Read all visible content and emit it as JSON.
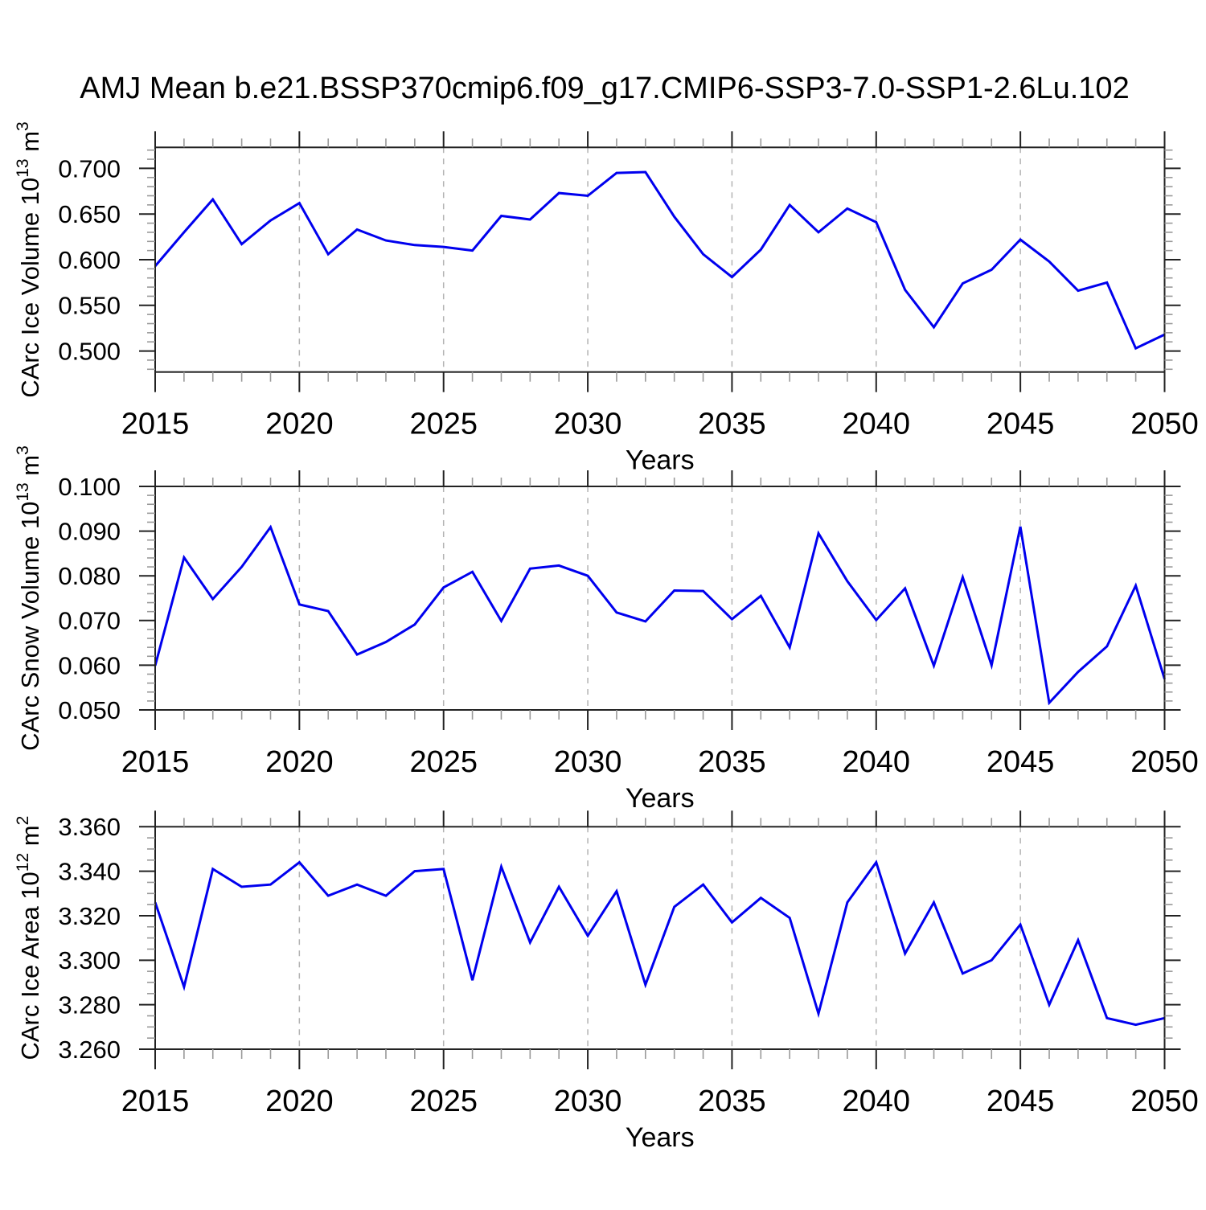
{
  "title": "AMJ Mean b.e21.BSSP370cmip6.f09_g17.CMIP6-SSP3-7.0-SSP1-2.6Lu.102",
  "x_axis": {
    "label": "Years",
    "tick_labels": [
      "2015",
      "2020",
      "2025",
      "2030",
      "2035",
      "2040",
      "2045",
      "2050"
    ],
    "major_step": 5,
    "minor_step": 1,
    "grid_years": [
      2020,
      2025,
      2030,
      2035,
      2040,
      2045
    ]
  },
  "style": {
    "line_color": "#0000ee",
    "grid_color": "#b3b3b3",
    "axis_color": "#222222",
    "minor_tick_color": "#999999",
    "text_color": "#000000",
    "background": "#ffffff"
  },
  "chart_data": [
    {
      "type": "line",
      "name": "carc-ice-volume",
      "ylabel": "CArc Ice Volume 10^13 m^3",
      "ylabel_parts": [
        {
          "t": "CArc Ice Volume 10"
        },
        {
          "t": "13",
          "sup": true
        },
        {
          "t": " m"
        },
        {
          "t": "3",
          "sup": true
        }
      ],
      "xlabel": "Years",
      "x": [
        2015,
        2016,
        2017,
        2018,
        2019,
        2020,
        2021,
        2022,
        2023,
        2024,
        2025,
        2026,
        2027,
        2028,
        2029,
        2030,
        2031,
        2032,
        2033,
        2034,
        2035,
        2036,
        2037,
        2038,
        2039,
        2040,
        2041,
        2042,
        2043,
        2044,
        2045,
        2046,
        2047,
        2048,
        2049,
        2050
      ],
      "values": [
        0.593,
        0.63,
        0.666,
        0.617,
        0.643,
        0.662,
        0.606,
        0.633,
        0.621,
        0.616,
        0.614,
        0.61,
        0.648,
        0.644,
        0.673,
        0.67,
        0.695,
        0.696,
        0.647,
        0.606,
        0.581,
        0.611,
        0.66,
        0.63,
        0.656,
        0.641,
        0.567,
        0.526,
        0.574,
        0.589,
        0.622,
        0.598,
        0.566,
        0.575,
        0.503,
        0.518
      ],
      "ylim": [
        0.477,
        0.723
      ],
      "y_major_ticks": [
        0.7,
        0.65,
        0.6,
        0.55,
        0.5
      ],
      "y_tick_labels": [
        "0.700",
        "0.650",
        "0.600",
        "0.550",
        "0.500"
      ],
      "y_minor_step": 0.01,
      "grid": "vertical-dashed"
    },
    {
      "type": "line",
      "name": "carc-snow-volume",
      "ylabel": "CArc Snow Volume 10^13 m^3",
      "ylabel_parts": [
        {
          "t": "CArc Snow Volume 10"
        },
        {
          "t": "13",
          "sup": true
        },
        {
          "t": " m"
        },
        {
          "t": "3",
          "sup": true
        }
      ],
      "xlabel": "Years",
      "x": [
        2015,
        2016,
        2017,
        2018,
        2019,
        2020,
        2021,
        2022,
        2023,
        2024,
        2025,
        2026,
        2027,
        2028,
        2029,
        2030,
        2031,
        2032,
        2033,
        2034,
        2035,
        2036,
        2037,
        2038,
        2039,
        2040,
        2041,
        2042,
        2043,
        2044,
        2045,
        2046,
        2047,
        2048,
        2049,
        2050
      ],
      "values": [
        0.0599,
        0.0841,
        0.0748,
        0.082,
        0.0909,
        0.0736,
        0.0721,
        0.0624,
        0.0652,
        0.0691,
        0.0774,
        0.0809,
        0.0699,
        0.0816,
        0.0823,
        0.08,
        0.0718,
        0.0698,
        0.0767,
        0.0766,
        0.0703,
        0.0755,
        0.064,
        0.0895,
        0.0788,
        0.0701,
        0.0772,
        0.0599,
        0.0797,
        0.06,
        0.091,
        0.0516,
        0.0585,
        0.0642,
        0.0778,
        0.0569
      ],
      "ylim": [
        0.05,
        0.1
      ],
      "y_major_ticks": [
        0.1,
        0.09,
        0.08,
        0.07,
        0.06,
        0.05
      ],
      "y_tick_labels": [
        "0.100",
        "0.090",
        "0.080",
        "0.070",
        "0.060",
        "0.050"
      ],
      "y_minor_step": 0.002,
      "grid": "vertical-dashed"
    },
    {
      "type": "line",
      "name": "carc-ice-area",
      "ylabel": "CArc Ice Area 10^12 m^2",
      "ylabel_parts": [
        {
          "t": "CArc Ice Area 10"
        },
        {
          "t": "12",
          "sup": true
        },
        {
          "t": " m"
        },
        {
          "t": "2",
          "sup": true
        }
      ],
      "xlabel": "Years",
      "x": [
        2015,
        2016,
        2017,
        2018,
        2019,
        2020,
        2021,
        2022,
        2023,
        2024,
        2025,
        2026,
        2027,
        2028,
        2029,
        2030,
        2031,
        2032,
        2033,
        2034,
        2035,
        2036,
        2037,
        2038,
        2039,
        2040,
        2041,
        2042,
        2043,
        2044,
        2045,
        2046,
        2047,
        2048,
        2049,
        2050
      ],
      "values": [
        3.326,
        3.288,
        3.341,
        3.333,
        3.334,
        3.344,
        3.329,
        3.334,
        3.329,
        3.34,
        3.341,
        3.291,
        3.342,
        3.308,
        3.333,
        3.311,
        3.331,
        3.289,
        3.324,
        3.334,
        3.317,
        3.328,
        3.319,
        3.276,
        3.326,
        3.344,
        3.303,
        3.326,
        3.294,
        3.3,
        3.316,
        3.28,
        3.309,
        3.274,
        3.271,
        3.274
      ],
      "ylim": [
        3.26,
        3.36
      ],
      "y_major_ticks": [
        3.36,
        3.34,
        3.32,
        3.3,
        3.28,
        3.26
      ],
      "y_tick_labels": [
        "3.360",
        "3.340",
        "3.320",
        "3.300",
        "3.280",
        "3.260"
      ],
      "y_minor_step": 0.005,
      "grid": "vertical-dashed"
    }
  ]
}
